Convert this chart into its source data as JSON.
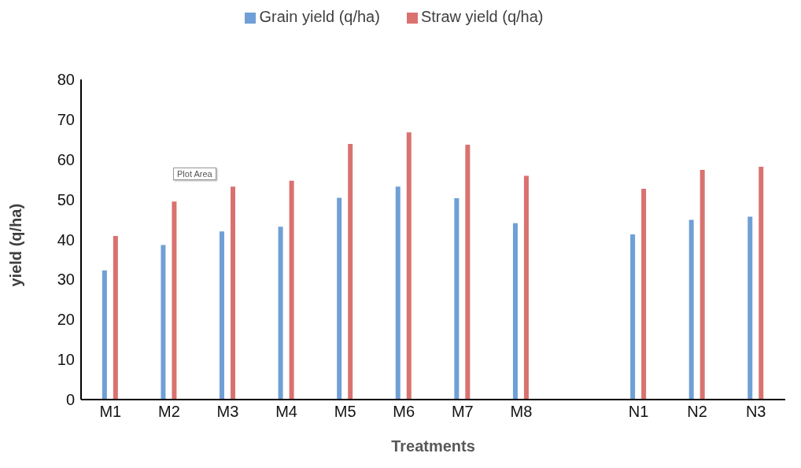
{
  "chart_data": {
    "type": "bar",
    "xlabel": "Treatments",
    "ylabel": "yield (q/ha)",
    "categories": [
      "M1",
      "M2",
      "M3",
      "M4",
      "M5",
      "M6",
      "M7",
      "M8",
      null,
      "N1",
      "N2",
      "N3"
    ],
    "series": [
      {
        "name": "Grain yield (q/ha)",
        "color": "#6f9fd6",
        "values": [
          32.3,
          38.6,
          42.0,
          43.2,
          50.4,
          53.2,
          50.3,
          44.1,
          null,
          41.3,
          44.9,
          45.7
        ]
      },
      {
        "name": "Straw yield (q/ha)",
        "color": "#d9726f",
        "values": [
          40.9,
          49.5,
          53.2,
          54.7,
          63.9,
          66.8,
          63.7,
          55.9,
          null,
          52.7,
          57.4,
          58.2
        ]
      }
    ],
    "ylim": [
      0,
      80
    ],
    "yticks": [
      0,
      10,
      20,
      30,
      40,
      50,
      60,
      70,
      80
    ],
    "grid": false,
    "legend": "top",
    "annotations": [
      "Plot Area"
    ]
  }
}
